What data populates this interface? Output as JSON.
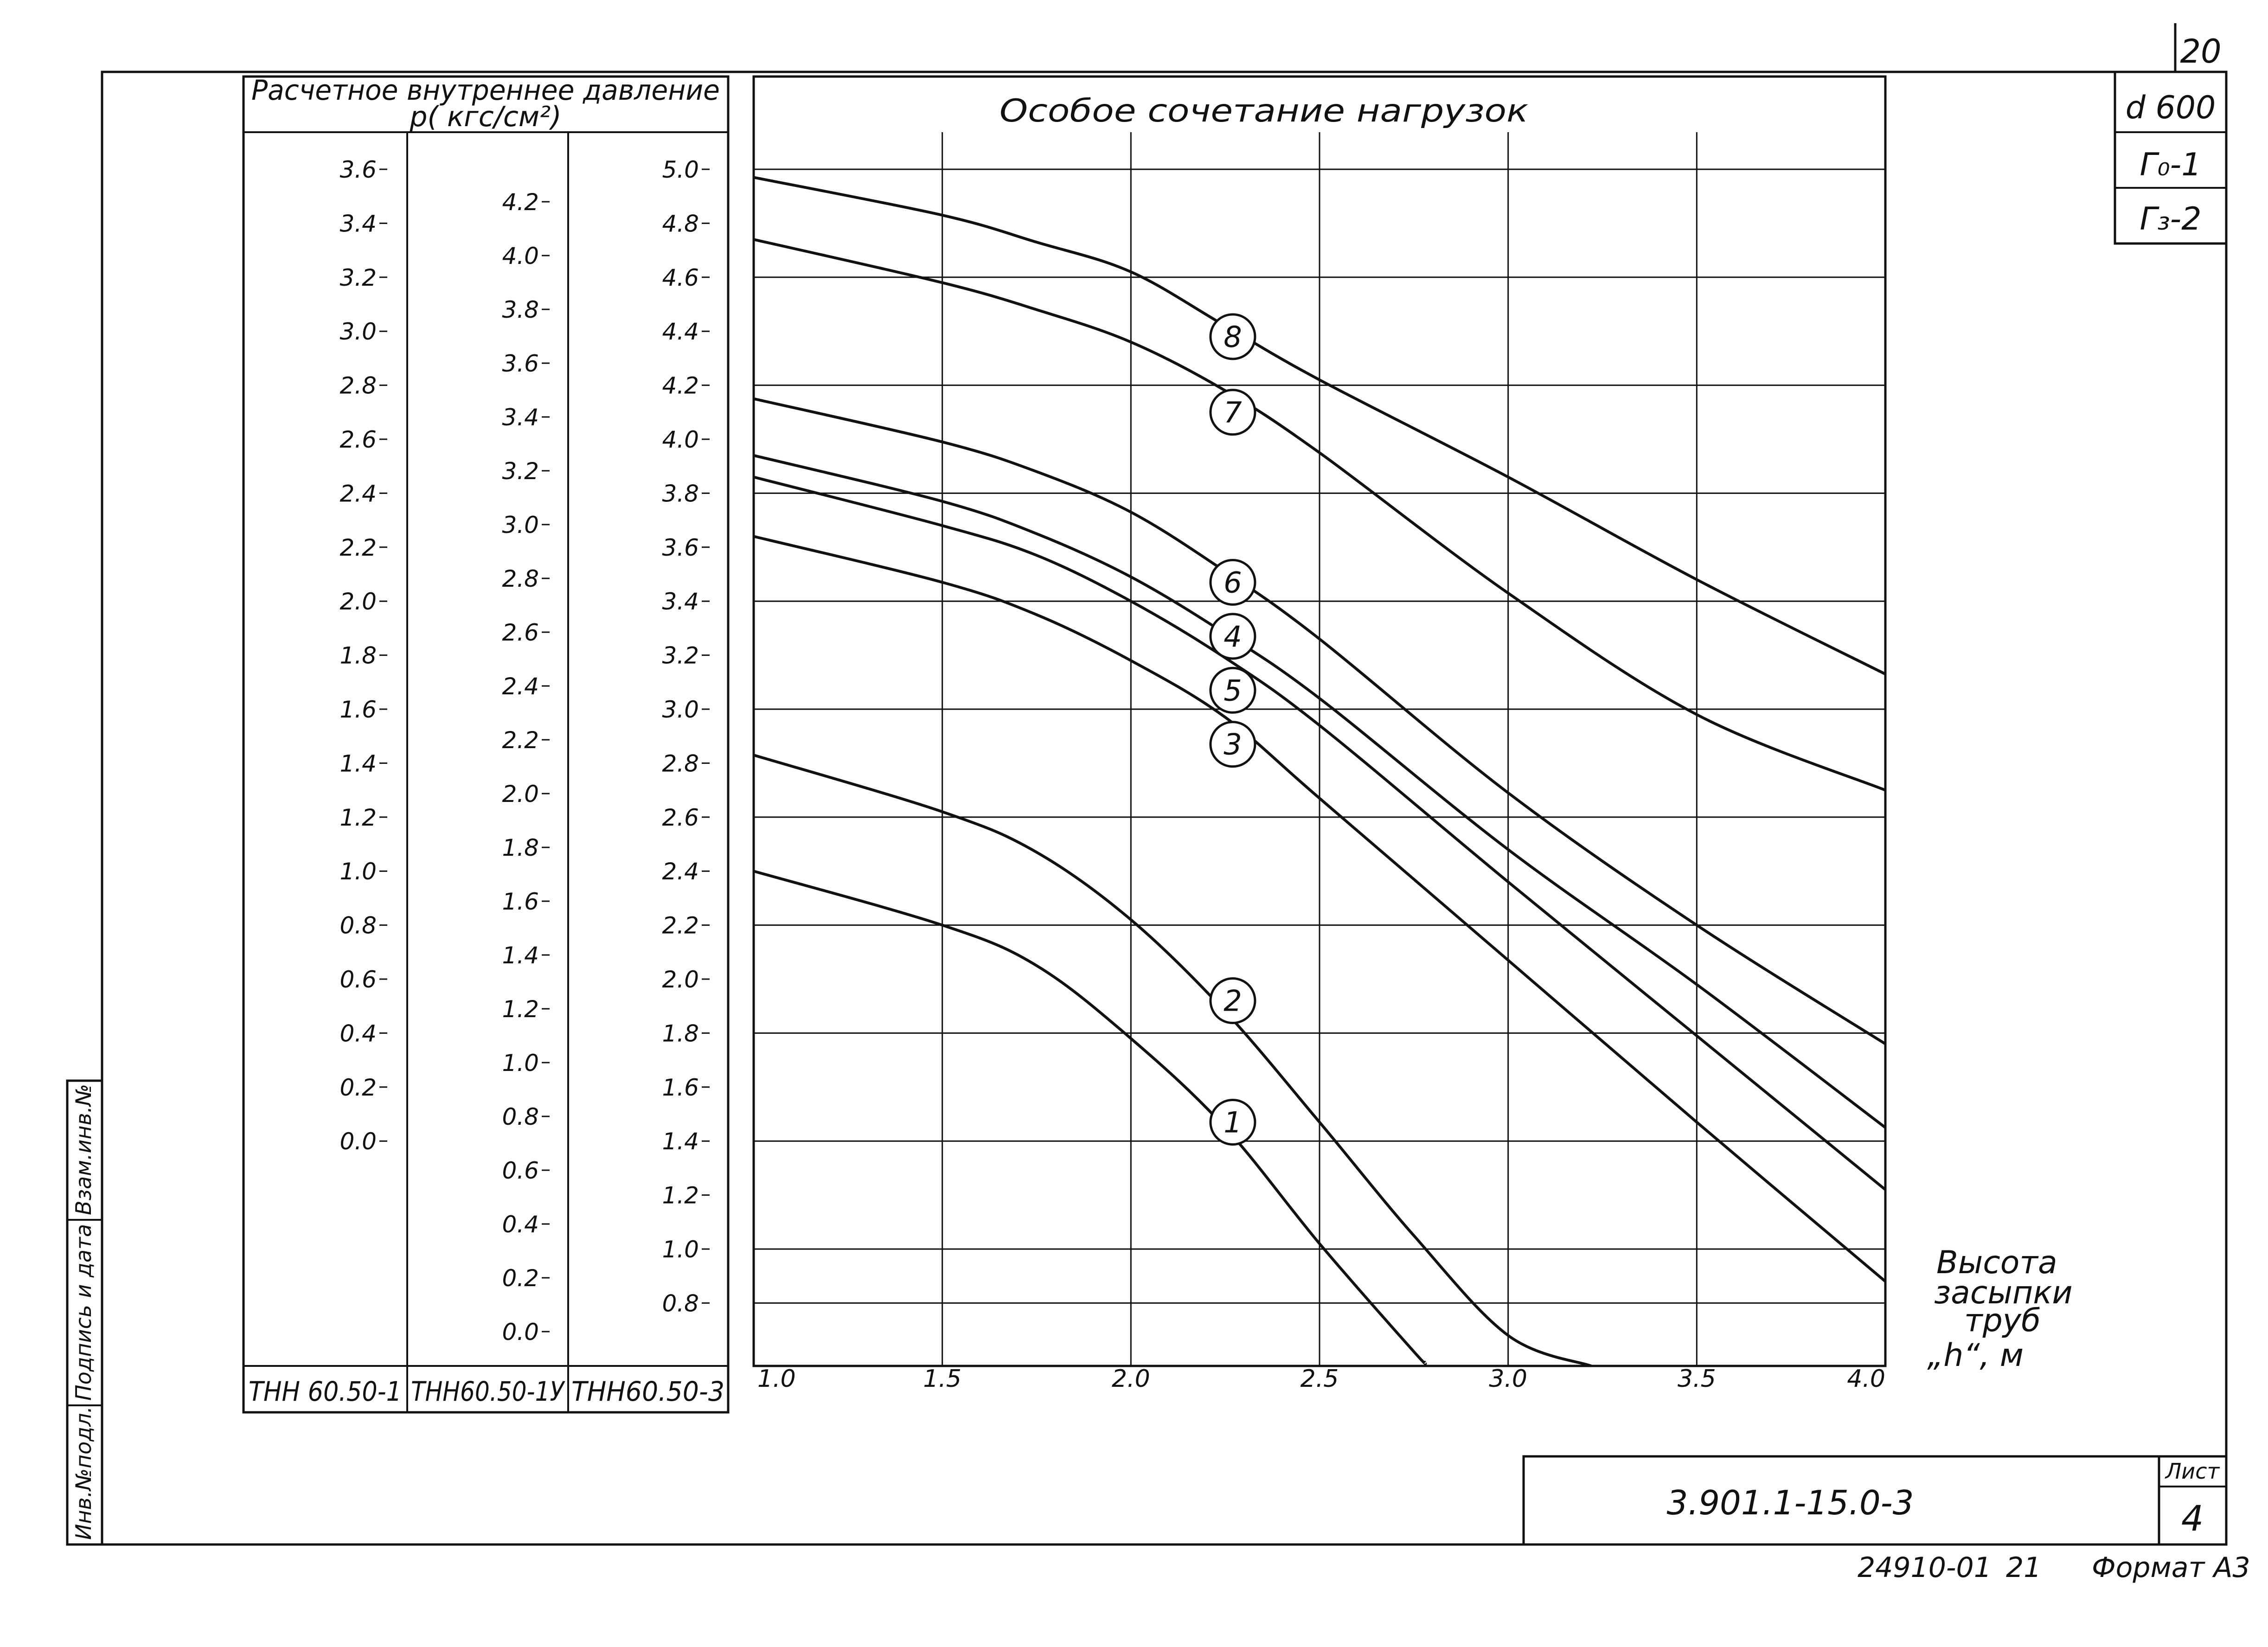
{
  "sheet_corner_number": "20",
  "stamp": {
    "diameter": "d 600",
    "g0": "Г₀-1",
    "g3": "Г₃-2"
  },
  "side_stamp": [
    "Инв.№подл.",
    "Подпись и дата",
    "Взам.инв.№"
  ],
  "pressure_header": {
    "line1": "Расчетное  внутреннее  давление",
    "line2": "p( кгс/см²)"
  },
  "pipe_types": [
    "ТНН 60.50-1",
    "ТНН60.50-1У",
    "ТНН60.50-3"
  ],
  "pressure_scales": [
    [
      "3.6",
      "3.4",
      "3.2",
      "3.0",
      "2.8",
      "2.6",
      "2.4",
      "2.2",
      "2.0",
      "1.8",
      "1.6",
      "1.4",
      "1.2",
      "1.0",
      "0.8",
      "0.6",
      "0.4",
      "0.2",
      "0.0"
    ],
    [
      "4.2",
      "4.0",
      "3.8",
      "3.6",
      "3.4",
      "3.2",
      "3.0",
      "2.8",
      "2.6",
      "2.4",
      "2.2",
      "2.0",
      "1.8",
      "1.6",
      "1.4",
      "1.2",
      "1.0",
      "0.8",
      "0.6",
      "0.4",
      "0.2",
      "0.0"
    ],
    [
      "5.0",
      "4.8",
      "4.6",
      "4.4",
      "4.2",
      "4.0",
      "3.8",
      "3.6",
      "3.4",
      "3.2",
      "3.0",
      "2.8",
      "2.6",
      "2.4",
      "2.2",
      "2.0",
      "1.8",
      "1.6",
      "1.4",
      "1.2",
      "1.0",
      "0.8"
    ]
  ],
  "x_axis_label": [
    "Высота",
    "засыпки",
    "труб",
    "„h“, м"
  ],
  "title_block": {
    "code": "3.901.1-15.0-3",
    "sheet_label": "Лист",
    "sheet_number": "4"
  },
  "footer": {
    "doc_number": "24910-01",
    "page": "21",
    "format": "Формат А3"
  },
  "chart_data": {
    "type": "line",
    "title": "Особое  сочетание  нагрузок",
    "xlabel": "Высота засыпки труб „h“, м",
    "ylabel": "",
    "x_ticks": [
      "1.0",
      "1.5",
      "2.0",
      "2.5",
      "3.0",
      "3.5",
      "4.0"
    ],
    "xlim": [
      1.0,
      4.0
    ],
    "ylim": [
      0.6,
      5.0
    ],
    "y_ticks_outer": [
      5.0,
      4.8,
      4.6,
      4.4,
      4.2,
      4.0,
      3.8,
      3.6,
      3.4,
      3.2,
      3.0,
      2.8,
      2.6,
      2.4,
      2.2,
      2.0,
      1.8,
      1.6,
      1.4,
      1.2,
      1.0,
      0.8
    ],
    "grid": true,
    "series": [
      {
        "name": "1",
        "points": [
          [
            1.0,
            2.4
          ],
          [
            1.5,
            2.2
          ],
          [
            1.75,
            2.05
          ],
          [
            2.0,
            1.78
          ],
          [
            2.25,
            1.45
          ],
          [
            2.5,
            1.02
          ],
          [
            2.75,
            0.62
          ],
          [
            2.78,
            0.58
          ]
        ],
        "label_at": [
          2.27,
          1.47
        ]
      },
      {
        "name": "2",
        "points": [
          [
            1.0,
            2.83
          ],
          [
            1.5,
            2.62
          ],
          [
            1.75,
            2.47
          ],
          [
            2.0,
            2.22
          ],
          [
            2.25,
            1.88
          ],
          [
            2.5,
            1.47
          ],
          [
            2.75,
            1.05
          ],
          [
            3.0,
            0.68
          ],
          [
            3.22,
            0.33
          ]
        ],
        "label_at": [
          2.27,
          1.92
        ]
      },
      {
        "name": "3",
        "points": [
          [
            1.0,
            3.64
          ],
          [
            1.5,
            3.47
          ],
          [
            1.75,
            3.35
          ],
          [
            2.0,
            3.18
          ],
          [
            2.25,
            2.97
          ],
          [
            2.5,
            2.67
          ],
          [
            3.0,
            2.07
          ],
          [
            3.5,
            1.47
          ],
          [
            4.0,
            0.88
          ]
        ],
        "label_at": [
          2.27,
          2.87
        ]
      },
      {
        "name": "5",
        "points": [
          [
            1.0,
            3.86
          ],
          [
            1.5,
            3.68
          ],
          [
            1.75,
            3.57
          ],
          [
            2.0,
            3.4
          ],
          [
            2.25,
            3.19
          ],
          [
            2.5,
            2.94
          ],
          [
            3.0,
            2.36
          ],
          [
            3.5,
            1.79
          ],
          [
            4.0,
            1.22
          ]
        ],
        "label_at": [
          2.27,
          3.07
        ]
      },
      {
        "name": "4",
        "points": [
          [
            1.0,
            3.94
          ],
          [
            1.5,
            3.77
          ],
          [
            1.75,
            3.65
          ],
          [
            2.0,
            3.49
          ],
          [
            2.25,
            3.28
          ],
          [
            2.5,
            3.04
          ],
          [
            3.0,
            2.48
          ],
          [
            3.5,
            1.98
          ],
          [
            4.0,
            1.45
          ]
        ],
        "label_at": [
          2.27,
          3.27
        ]
      },
      {
        "name": "6",
        "points": [
          [
            1.0,
            4.15
          ],
          [
            1.5,
            3.99
          ],
          [
            1.75,
            3.88
          ],
          [
            2.0,
            3.73
          ],
          [
            2.25,
            3.51
          ],
          [
            2.5,
            3.26
          ],
          [
            3.0,
            2.69
          ],
          [
            3.5,
            2.2
          ],
          [
            4.0,
            1.76
          ]
        ],
        "label_at": [
          2.27,
          3.47
        ]
      },
      {
        "name": "7",
        "points": [
          [
            1.0,
            4.74
          ],
          [
            1.5,
            4.58
          ],
          [
            1.75,
            4.48
          ],
          [
            2.0,
            4.36
          ],
          [
            2.25,
            4.18
          ],
          [
            2.5,
            3.95
          ],
          [
            3.0,
            3.43
          ],
          [
            3.5,
            2.98
          ],
          [
            4.0,
            2.7
          ]
        ],
        "label_at": [
          2.27,
          4.1
        ]
      },
      {
        "name": "8",
        "points": [
          [
            1.0,
            4.97
          ],
          [
            1.5,
            4.83
          ],
          [
            1.75,
            4.73
          ],
          [
            2.0,
            4.62
          ],
          [
            2.25,
            4.42
          ],
          [
            2.5,
            4.22
          ],
          [
            3.0,
            3.86
          ],
          [
            3.5,
            3.48
          ],
          [
            4.0,
            3.13
          ]
        ],
        "label_at": [
          2.27,
          4.38
        ]
      }
    ]
  }
}
